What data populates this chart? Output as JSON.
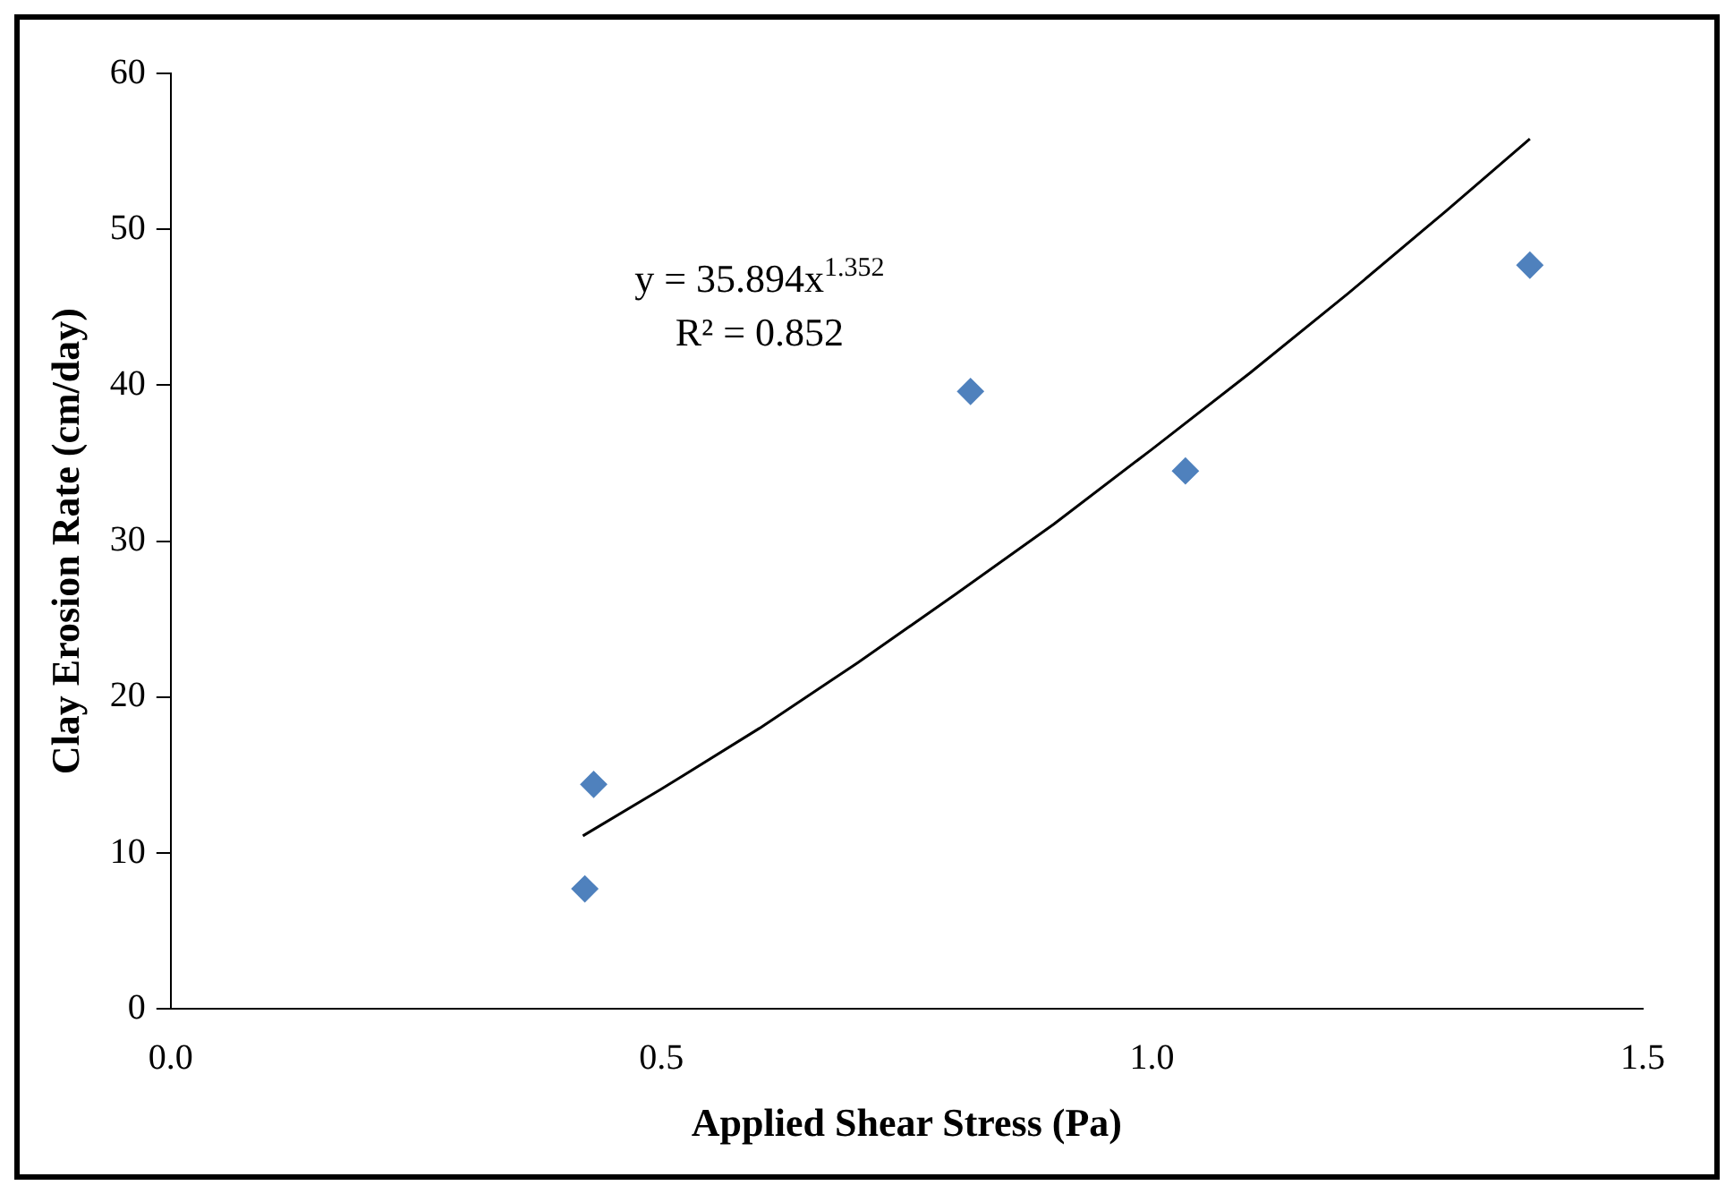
{
  "chart_data": {
    "type": "scatter",
    "xlabel": "Applied Shear Stress (Pa)",
    "ylabel": "Clay Erosion Rate (cm/day)",
    "xlim": [
      0,
      1.5
    ],
    "xticks": [
      {
        "value": 0,
        "label": "0.0"
      },
      {
        "value": 0.5,
        "label": "0.5"
      },
      {
        "value": 1,
        "label": "1.0"
      },
      {
        "value": 1.5,
        "label": "1.5"
      }
    ],
    "ylim": [
      0,
      60
    ],
    "yticks": [
      0,
      10,
      20,
      30,
      40,
      50,
      60
    ],
    "grid": false,
    "legend": false,
    "marker": "diamond",
    "annotations": [
      "y = 35.894x$^{1.352}$",
      "R² = 0.852"
    ],
    "series": [
      {
        "type": "scatter",
        "color": "#4f81bd",
        "x": [
          0.422,
          0.431,
          0.815,
          1.034,
          1.385
        ],
        "values": [
          7.7,
          14.4,
          39.6,
          34.5,
          47.7
        ]
      },
      {
        "type": "line",
        "color": "#000000",
        "marker": "none",
        "x": [
          0.42,
          0.5,
          0.6,
          0.7,
          0.8,
          0.9,
          1.0,
          1.1,
          1.2,
          1.3,
          1.385
        ],
        "values": [
          11.1,
          14.1,
          18.0,
          22.2,
          26.6,
          31.1,
          35.9,
          40.8,
          45.9,
          51.2,
          55.8
        ]
      }
    ]
  }
}
